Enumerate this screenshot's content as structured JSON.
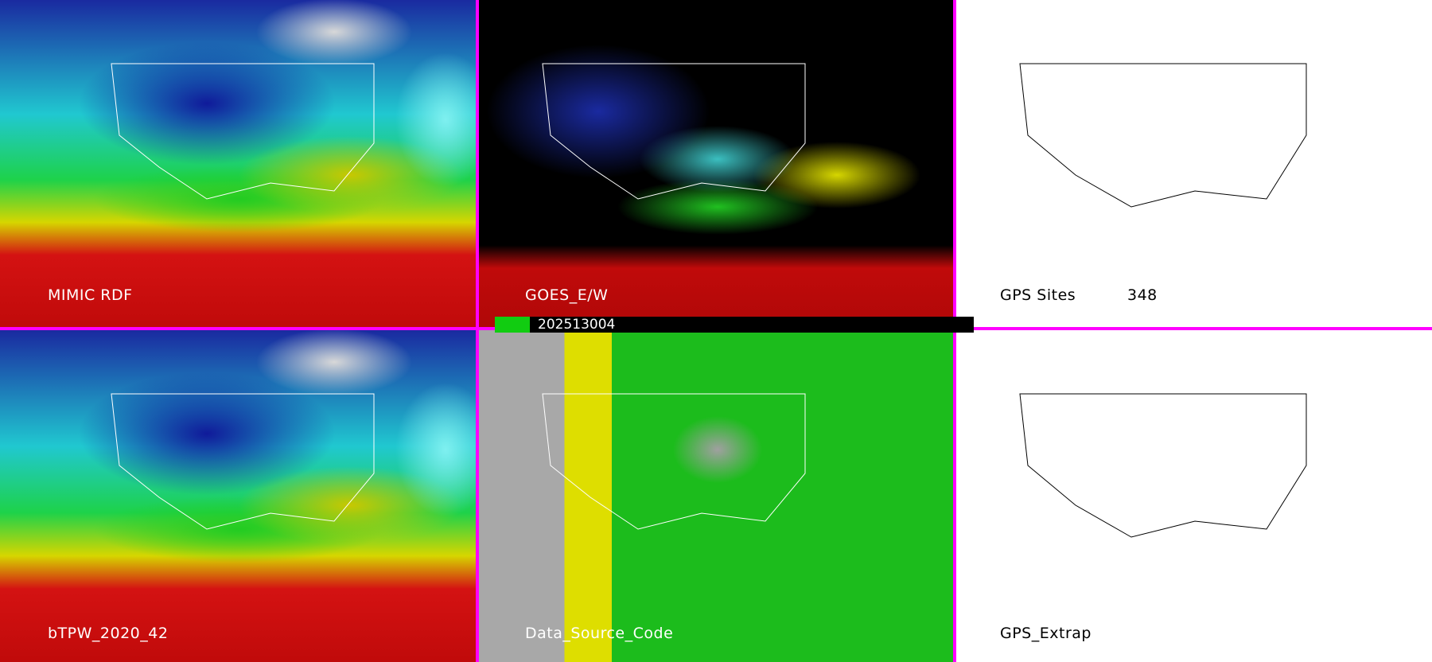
{
  "panels": [
    {
      "label": "MIMIC RDF"
    },
    {
      "label": "GOES_E/W"
    },
    {
      "label": "GPS Sites",
      "count": "348"
    },
    {
      "label": "bTPW_2020_42"
    },
    {
      "label": "Data_Source_Code"
    },
    {
      "label": "GPS_Extrap"
    }
  ],
  "timestamp": "202513004",
  "colors": {
    "divider": "#ff00ff",
    "gps_background": "#ffffff"
  }
}
